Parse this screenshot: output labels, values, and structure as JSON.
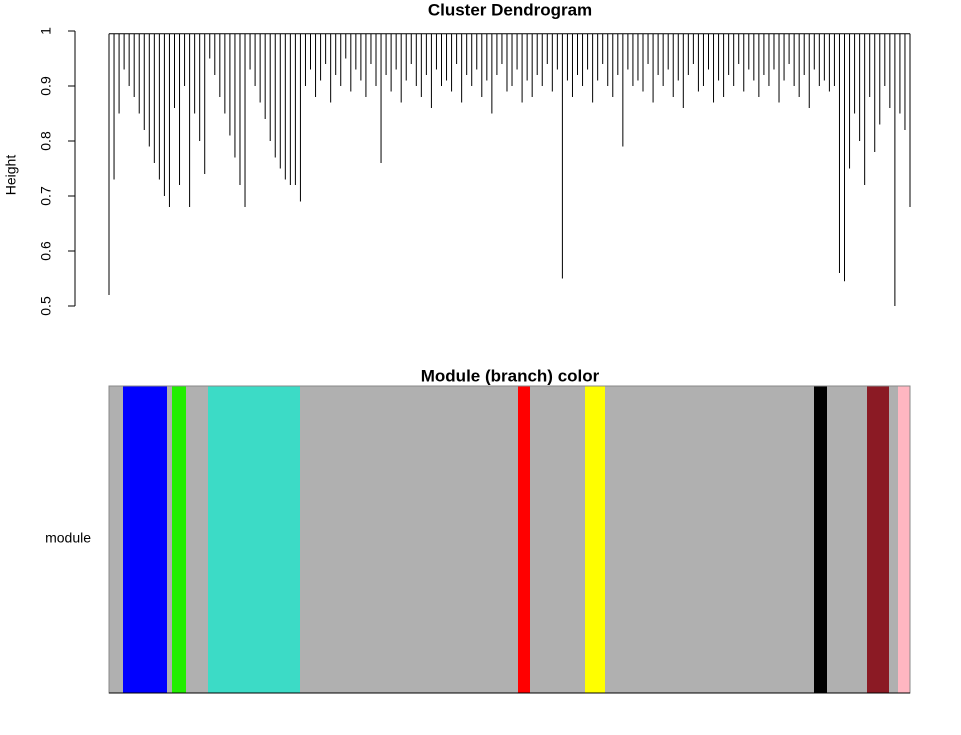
{
  "chart_data": [
    {
      "type": "dendrogram",
      "title": "Cluster Dendrogram",
      "ylabel": "Height",
      "ylim": [
        0.5,
        1.0
      ],
      "yticks": [
        0.5,
        0.6,
        0.7,
        0.8,
        0.9,
        1.0
      ],
      "merge_height": 0.995,
      "color": "#000000",
      "values": [
        0.52,
        0.73,
        0.85,
        0.93,
        0.9,
        0.88,
        0.85,
        0.82,
        0.79,
        0.76,
        0.73,
        0.7,
        0.68,
        0.86,
        0.72,
        0.9,
        0.68,
        0.85,
        0.8,
        0.74,
        0.95,
        0.92,
        0.88,
        0.85,
        0.81,
        0.77,
        0.72,
        0.68,
        0.93,
        0.9,
        0.87,
        0.84,
        0.8,
        0.77,
        0.75,
        0.73,
        0.72,
        0.72,
        0.69,
        0.9,
        0.93,
        0.88,
        0.91,
        0.94,
        0.87,
        0.92,
        0.9,
        0.95,
        0.89,
        0.93,
        0.91,
        0.88,
        0.94,
        0.9,
        0.76,
        0.92,
        0.89,
        0.93,
        0.87,
        0.91,
        0.94,
        0.9,
        0.88,
        0.92,
        0.86,
        0.93,
        0.9,
        0.91,
        0.89,
        0.94,
        0.87,
        0.92,
        0.9,
        0.93,
        0.88,
        0.91,
        0.85,
        0.92,
        0.94,
        0.89,
        0.9,
        0.93,
        0.87,
        0.91,
        0.88,
        0.92,
        0.9,
        0.94,
        0.89,
        0.93,
        0.55,
        0.91,
        0.88,
        0.92,
        0.9,
        0.93,
        0.87,
        0.91,
        0.94,
        0.9,
        0.88,
        0.92,
        0.79,
        0.93,
        0.9,
        0.91,
        0.89,
        0.94,
        0.87,
        0.92,
        0.9,
        0.93,
        0.88,
        0.91,
        0.86,
        0.92,
        0.94,
        0.89,
        0.9,
        0.93,
        0.87,
        0.91,
        0.88,
        0.92,
        0.9,
        0.94,
        0.89,
        0.93,
        0.91,
        0.88,
        0.92,
        0.9,
        0.93,
        0.87,
        0.91,
        0.94,
        0.9,
        0.88,
        0.92,
        0.86,
        0.93,
        0.9,
        0.91,
        0.89,
        0.9,
        0.56,
        0.545,
        0.75,
        0.85,
        0.8,
        0.72,
        0.88,
        0.78,
        0.83,
        0.9,
        0.86,
        0.5,
        0.85,
        0.82,
        0.68
      ]
    },
    {
      "type": "colorbar",
      "title": "Module (branch) color",
      "ylabel": "module",
      "segments": [
        {
          "color": "#b0b0b0",
          "width": 14
        },
        {
          "color": "#0000ff",
          "width": 44
        },
        {
          "color": "#b0b0b0",
          "width": 5
        },
        {
          "color": "#22ee00",
          "width": 14
        },
        {
          "color": "#b0b0b0",
          "width": 22
        },
        {
          "color": "#3cdbc6",
          "width": 92
        },
        {
          "color": "#b0b0b0",
          "width": 218
        },
        {
          "color": "#ff0000",
          "width": 12
        },
        {
          "color": "#b0b0b0",
          "width": 55
        },
        {
          "color": "#ffff00",
          "width": 20
        },
        {
          "color": "#b0b0b0",
          "width": 209
        },
        {
          "color": "#000000",
          "width": 13
        },
        {
          "color": "#b0b0b0",
          "width": 40
        },
        {
          "color": "#8b1a24",
          "width": 22
        },
        {
          "color": "#b0b0b0",
          "width": 9
        },
        {
          "color": "#ffb6c1",
          "width": 12
        }
      ]
    }
  ]
}
